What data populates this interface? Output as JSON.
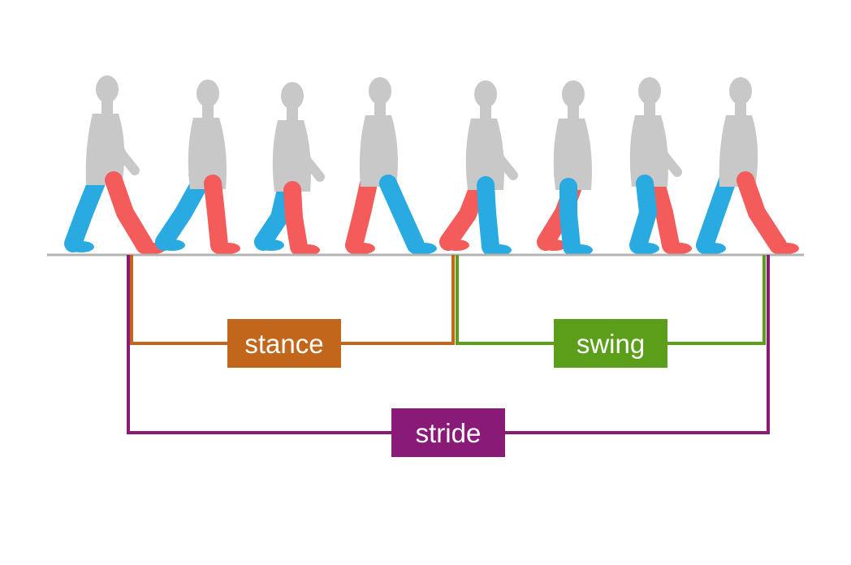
{
  "colors": {
    "body": "#c8c8c8",
    "left_leg": "#29abe2",
    "right_leg": "#f45b5b",
    "ground": "#b3b3b3",
    "stance": "#c1661a",
    "swing": "#5b9e1a",
    "stride": "#8a1a78"
  },
  "figures": [
    {
      "phase": 1
    },
    {
      "phase": 2
    },
    {
      "phase": 3
    },
    {
      "phase": 4
    },
    {
      "phase": 5
    },
    {
      "phase": 6
    },
    {
      "phase": 7
    },
    {
      "phase": 8
    }
  ],
  "labels": {
    "stance": "stance",
    "swing": "swing",
    "stride": "stride"
  }
}
